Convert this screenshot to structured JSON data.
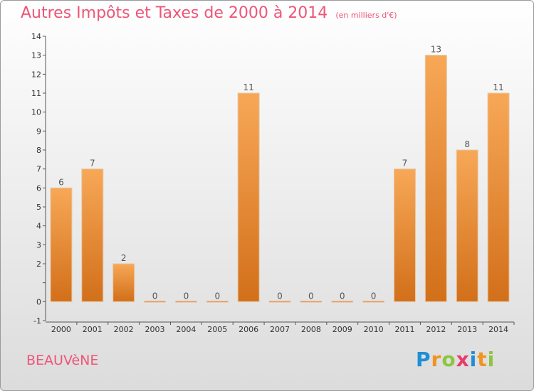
{
  "chart_data": {
    "type": "bar",
    "title": "Autres Impôts et Taxes de 2000 à 2014",
    "subtitle": "(en milliers d'€)",
    "categories": [
      "2000",
      "2001",
      "2002",
      "2003",
      "2004",
      "2005",
      "2006",
      "2007",
      "2008",
      "2009",
      "2010",
      "2011",
      "2012",
      "2013",
      "2014"
    ],
    "values": [
      6,
      7,
      2,
      0,
      0,
      0,
      11,
      0,
      0,
      0,
      0,
      7,
      13,
      8,
      11
    ],
    "ylim": [
      -1,
      14
    ],
    "yticks": [
      -1,
      0,
      1,
      2,
      3,
      4,
      5,
      6,
      7,
      8,
      9,
      10,
      11,
      12,
      13,
      14
    ],
    "ytick_labels": [
      "-1",
      "0",
      "",
      "2",
      "3",
      "4",
      "5",
      "6",
      "7",
      "8",
      "9",
      "10",
      "11",
      "12",
      "13",
      "14"
    ],
    "xlabel": "",
    "ylabel": "",
    "grid": false,
    "bar_color_top": "#f7a857",
    "bar_color_bottom": "#d26f1a"
  },
  "footer": {
    "commune": "BEAUVèNE",
    "logo_letters": [
      "P",
      "r",
      "o",
      "x",
      "i",
      "t",
      "i"
    ],
    "logo_colors": [
      "#1e8fd6",
      "#f29320",
      "#8cc63e",
      "#e83b6e",
      "#1e8fd6",
      "#f29320",
      "#8cc63e"
    ]
  }
}
